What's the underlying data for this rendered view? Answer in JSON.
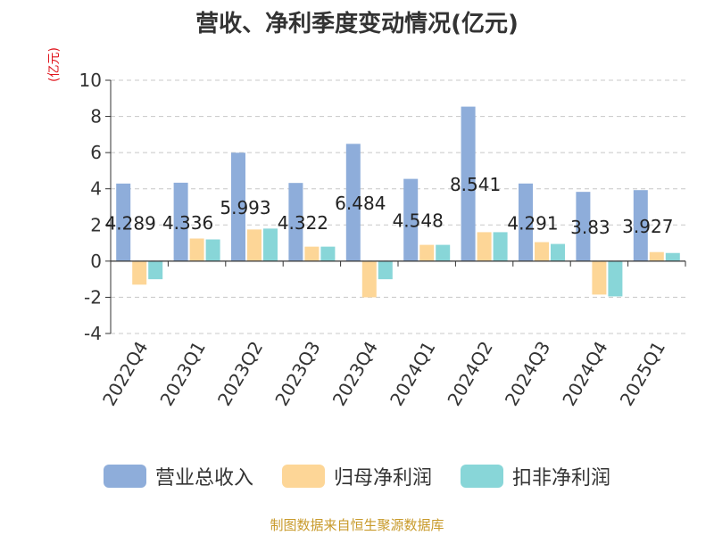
{
  "title": "营收、净利季度变动情况(亿元)",
  "unit": "(亿元)",
  "source": "制图数据来自恒生聚源数据库",
  "chart_data": {
    "type": "bar",
    "categories": [
      "2022Q4",
      "2023Q1",
      "2023Q2",
      "2023Q3",
      "2023Q4",
      "2024Q1",
      "2024Q2",
      "2024Q3",
      "2024Q4",
      "2025Q1"
    ],
    "ylim": [
      -4,
      10
    ],
    "yticks": [
      -4,
      -2,
      0,
      2,
      4,
      6,
      8,
      10
    ],
    "grid": true,
    "legend_position": "bottom",
    "series": [
      {
        "name": "营业总收入",
        "color": "#8eadda",
        "values": [
          4.289,
          4.336,
          5.993,
          4.322,
          6.484,
          4.548,
          8.541,
          4.291,
          3.83,
          3.927
        ]
      },
      {
        "name": "归母净利润",
        "color": "#fdd697",
        "values": [
          -1.3,
          1.25,
          1.75,
          0.8,
          -2.0,
          0.9,
          1.6,
          1.05,
          -1.85,
          0.5
        ]
      },
      {
        "name": "扣非净利润",
        "color": "#88d6d8",
        "values": [
          -1.0,
          1.2,
          1.8,
          0.8,
          -1.0,
          0.9,
          1.6,
          0.95,
          -1.95,
          0.45
        ]
      }
    ],
    "data_labels": [
      "4.289",
      "4.336",
      "5.993",
      "4.322",
      "6.484",
      "4.548",
      "8.541",
      "4.291",
      "3.83",
      "3.927"
    ]
  }
}
